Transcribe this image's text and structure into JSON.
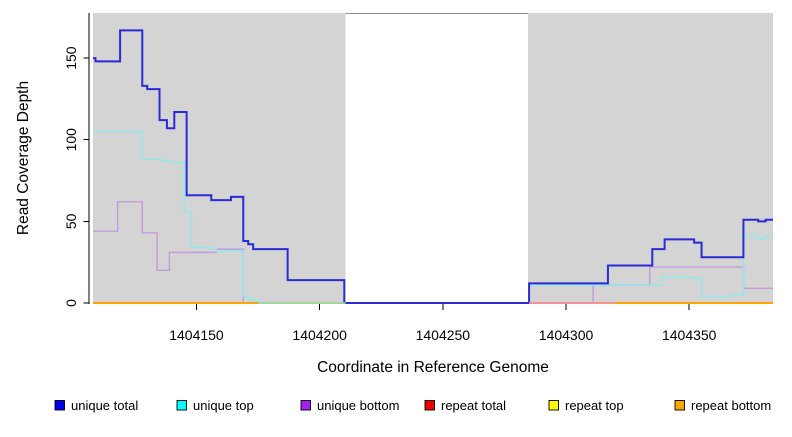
{
  "chart_data": {
    "type": "line",
    "subtype": "step-coverage-plot",
    "title": "",
    "xlabel": "Coordinate in Reference Genome",
    "ylabel": "Read Coverage Depth",
    "xlim": [
      1404108,
      1404384
    ],
    "ylim": [
      0,
      178
    ],
    "x_ticks": [
      "1404150",
      "1404200",
      "1404250",
      "1404300",
      "1404350"
    ],
    "x_tick_values": [
      1404150,
      1404200,
      1404250,
      1404300,
      1404350
    ],
    "y_ticks": [
      "0",
      "50",
      "100",
      "150"
    ],
    "y_tick_values": [
      0,
      50,
      100,
      150
    ],
    "grid": false,
    "legend_position": "bottom",
    "plot_background": "#FFFFFF",
    "shaded_regions": [
      {
        "from": 1404108,
        "to": 1404210.5,
        "color": "#D4D4D4"
      },
      {
        "from": 1404284.5,
        "to": 1404384,
        "color": "#D4D4D4"
      }
    ],
    "gap_region": {
      "from": 1404210.5,
      "to": 1404284.5,
      "color": "#FFFFFF",
      "top_border_color": "#8C8C8C"
    },
    "series": [
      {
        "name": "repeat total",
        "color": "#EE0000",
        "width": 1.5,
        "steps": [
          [
            1404108,
            0
          ],
          [
            1404384,
            0
          ]
        ]
      },
      {
        "name": "repeat top",
        "color": "#FFFF00",
        "width": 1.5,
        "steps": [
          [
            1404108,
            0
          ],
          [
            1404384,
            0
          ]
        ]
      },
      {
        "name": "repeat bottom",
        "color": "#FFA500",
        "width": 1.8,
        "steps": [
          [
            1404108,
            0
          ],
          [
            1404384,
            0
          ]
        ]
      },
      {
        "name": "unique bottom",
        "color": "#C49BDE",
        "width": 1.4,
        "steps": [
          [
            1404108,
            44
          ],
          [
            1404118,
            62
          ],
          [
            1404128,
            43
          ],
          [
            1404134,
            20
          ],
          [
            1404139,
            31
          ],
          [
            1404158,
            33
          ],
          [
            1404169,
            0
          ],
          [
            1404311,
            11
          ],
          [
            1404334,
            22
          ],
          [
            1404372,
            9
          ],
          [
            1404384,
            9
          ]
        ]
      },
      {
        "name": "unique top",
        "color": "#8FE9EC",
        "width": 1.4,
        "steps": [
          [
            1404108,
            105
          ],
          [
            1404128,
            88
          ],
          [
            1404136,
            87
          ],
          [
            1404140,
            86
          ],
          [
            1404145,
            56
          ],
          [
            1404148,
            34
          ],
          [
            1404156,
            33
          ],
          [
            1404158,
            32
          ],
          [
            1404169,
            4
          ],
          [
            1404171,
            2
          ],
          [
            1404174,
            1
          ],
          [
            1404176,
            0
          ],
          [
            1404285,
            11
          ],
          [
            1404339,
            16
          ],
          [
            1404352,
            15
          ],
          [
            1404355,
            4
          ],
          [
            1404367,
            5
          ],
          [
            1404372,
            41
          ],
          [
            1404378,
            39
          ],
          [
            1404381,
            41
          ],
          [
            1404384,
            41
          ]
        ]
      },
      {
        "name": "unique total",
        "color": "#2B2BD5",
        "width": 2,
        "steps": [
          [
            1404108,
            150
          ],
          [
            1404109,
            148
          ],
          [
            1404119,
            167
          ],
          [
            1404128,
            133
          ],
          [
            1404130,
            131
          ],
          [
            1404135,
            112
          ],
          [
            1404138,
            107
          ],
          [
            1404141,
            117
          ],
          [
            1404146,
            66
          ],
          [
            1404156,
            63
          ],
          [
            1404164,
            65
          ],
          [
            1404169,
            38
          ],
          [
            1404171,
            36
          ],
          [
            1404173,
            33
          ],
          [
            1404187,
            14
          ],
          [
            1404210,
            0
          ],
          [
            1404285,
            12
          ],
          [
            1404317,
            23
          ],
          [
            1404335,
            33
          ],
          [
            1404340,
            39
          ],
          [
            1404352,
            37
          ],
          [
            1404355,
            28
          ],
          [
            1404372,
            51
          ],
          [
            1404378,
            50
          ],
          [
            1404381,
            51
          ],
          [
            1404384,
            51
          ]
        ]
      }
    ],
    "baseline_segments": [
      {
        "from": 1404108,
        "to": 1404175,
        "color": "#FFA500"
      },
      {
        "from": 1404175,
        "to": 1404210.5,
        "color": "#9CDB9C"
      },
      {
        "from": 1404285,
        "to": 1404320,
        "color": "#F590A0"
      },
      {
        "from": 1404320,
        "to": 1404384,
        "color": "#FFA500"
      }
    ]
  },
  "legend": {
    "items": [
      {
        "label": "unique total",
        "color": "#0000EE"
      },
      {
        "label": "unique top",
        "color": "#00FFFF"
      },
      {
        "label": "unique bottom",
        "color": "#A020F0"
      },
      {
        "label": "repeat total",
        "color": "#EE0000"
      },
      {
        "label": "repeat top",
        "color": "#FFFF00"
      },
      {
        "label": "repeat bottom",
        "color": "#FFA500"
      }
    ]
  }
}
